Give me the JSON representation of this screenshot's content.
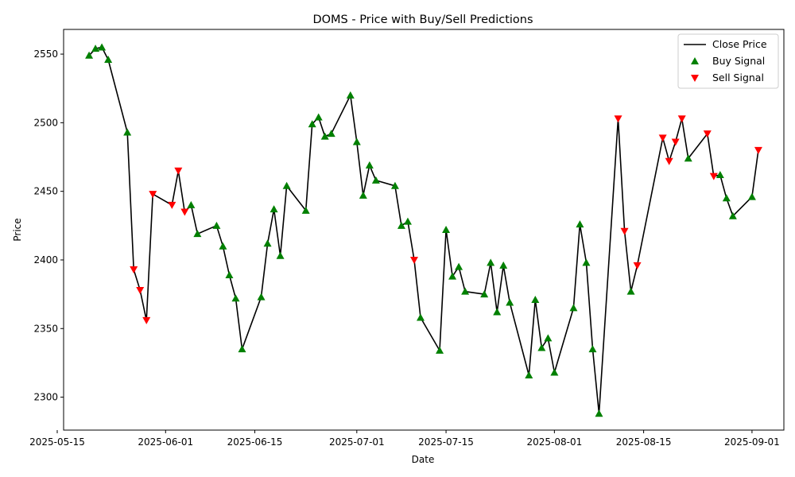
{
  "chart_data": {
    "type": "line",
    "title": "DOMS - Price with Buy/Sell Predictions",
    "xlabel": "Date",
    "ylabel": "Price",
    "ylim": [
      2276,
      2568
    ],
    "xlim": [
      "2025-05-16",
      "2025-09-06"
    ],
    "x_ticks": [
      "2025-05-15",
      "2025-06-01",
      "2025-06-15",
      "2025-07-01",
      "2025-07-15",
      "2025-08-01",
      "2025-08-15",
      "2025-09-01"
    ],
    "y_ticks": [
      2300,
      2350,
      2400,
      2450,
      2500,
      2550
    ],
    "grid": false,
    "legend": {
      "position": "upper right",
      "entries": [
        "Close Price",
        "Buy Signal",
        "Sell Signal"
      ]
    },
    "colors": {
      "line": "#000000",
      "buy": "#008000",
      "sell": "#ff0000"
    },
    "series": [
      {
        "name": "Close Price",
        "points": [
          [
            "2025-05-20",
            2549,
            "buy"
          ],
          [
            "2025-05-21",
            2554,
            "buy"
          ],
          [
            "2025-05-22",
            2555,
            "buy"
          ],
          [
            "2025-05-23",
            2546,
            "buy"
          ],
          [
            "2025-05-26",
            2493,
            "buy"
          ],
          [
            "2025-05-27",
            2393,
            "sell"
          ],
          [
            "2025-05-28",
            2378,
            "sell"
          ],
          [
            "2025-05-29",
            2356,
            "sell"
          ],
          [
            "2025-05-30",
            2448,
            "sell"
          ],
          [
            "2025-06-02",
            2440,
            "sell"
          ],
          [
            "2025-06-03",
            2465,
            "sell"
          ],
          [
            "2025-06-04",
            2435,
            "sell"
          ],
          [
            "2025-06-05",
            2440,
            "buy"
          ],
          [
            "2025-06-06",
            2419,
            "buy"
          ],
          [
            "2025-06-09",
            2425,
            "buy"
          ],
          [
            "2025-06-10",
            2410,
            "buy"
          ],
          [
            "2025-06-11",
            2389,
            "buy"
          ],
          [
            "2025-06-12",
            2372,
            "buy"
          ],
          [
            "2025-06-13",
            2335,
            "buy"
          ],
          [
            "2025-06-16",
            2373,
            "buy"
          ],
          [
            "2025-06-17",
            2412,
            "buy"
          ],
          [
            "2025-06-18",
            2437,
            "buy"
          ],
          [
            "2025-06-19",
            2403,
            "buy"
          ],
          [
            "2025-06-20",
            2454,
            "buy"
          ],
          [
            "2025-06-23",
            2436,
            "buy"
          ],
          [
            "2025-06-24",
            2499,
            "buy"
          ],
          [
            "2025-06-25",
            2504,
            "buy"
          ],
          [
            "2025-06-26",
            2490,
            "buy"
          ],
          [
            "2025-06-27",
            2492,
            "buy"
          ],
          [
            "2025-06-30",
            2520,
            "buy"
          ],
          [
            "2025-07-01",
            2486,
            "buy"
          ],
          [
            "2025-07-02",
            2447,
            "buy"
          ],
          [
            "2025-07-03",
            2469,
            "buy"
          ],
          [
            "2025-07-04",
            2458,
            "buy"
          ],
          [
            "2025-07-07",
            2454,
            "buy"
          ],
          [
            "2025-07-08",
            2425,
            "buy"
          ],
          [
            "2025-07-09",
            2428,
            "buy"
          ],
          [
            "2025-07-10",
            2400,
            "sell"
          ],
          [
            "2025-07-11",
            2358,
            "buy"
          ],
          [
            "2025-07-14",
            2334,
            "buy"
          ],
          [
            "2025-07-15",
            2422,
            "buy"
          ],
          [
            "2025-07-16",
            2388,
            "buy"
          ],
          [
            "2025-07-17",
            2395,
            "buy"
          ],
          [
            "2025-07-18",
            2377,
            "buy"
          ],
          [
            "2025-07-21",
            2375,
            "buy"
          ],
          [
            "2025-07-22",
            2398,
            "buy"
          ],
          [
            "2025-07-23",
            2362,
            "buy"
          ],
          [
            "2025-07-24",
            2396,
            "buy"
          ],
          [
            "2025-07-25",
            2369,
            "buy"
          ],
          [
            "2025-07-28",
            2316,
            "buy"
          ],
          [
            "2025-07-29",
            2371,
            "buy"
          ],
          [
            "2025-07-30",
            2336,
            "buy"
          ],
          [
            "2025-07-31",
            2343,
            "buy"
          ],
          [
            "2025-08-01",
            2318,
            "buy"
          ],
          [
            "2025-08-04",
            2365,
            "buy"
          ],
          [
            "2025-08-05",
            2426,
            "buy"
          ],
          [
            "2025-08-06",
            2398,
            "buy"
          ],
          [
            "2025-08-07",
            2335,
            "buy"
          ],
          [
            "2025-08-08",
            2288,
            "buy"
          ],
          [
            "2025-08-11",
            2503,
            "sell"
          ],
          [
            "2025-08-12",
            2421,
            "sell"
          ],
          [
            "2025-08-13",
            2377,
            "buy"
          ],
          [
            "2025-08-14",
            2396,
            "sell"
          ],
          [
            "2025-08-18",
            2489,
            "sell"
          ],
          [
            "2025-08-19",
            2472,
            "sell"
          ],
          [
            "2025-08-20",
            2486,
            "sell"
          ],
          [
            "2025-08-21",
            2503,
            "sell"
          ],
          [
            "2025-08-22",
            2474,
            "buy"
          ],
          [
            "2025-08-25",
            2492,
            "sell"
          ],
          [
            "2025-08-26",
            2461,
            "sell"
          ],
          [
            "2025-08-27",
            2462,
            "buy"
          ],
          [
            "2025-08-28",
            2445,
            "buy"
          ],
          [
            "2025-08-29",
            2432,
            "buy"
          ],
          [
            "2025-09-01",
            2446,
            "buy"
          ],
          [
            "2025-09-02",
            2480,
            "sell"
          ]
        ]
      }
    ]
  }
}
